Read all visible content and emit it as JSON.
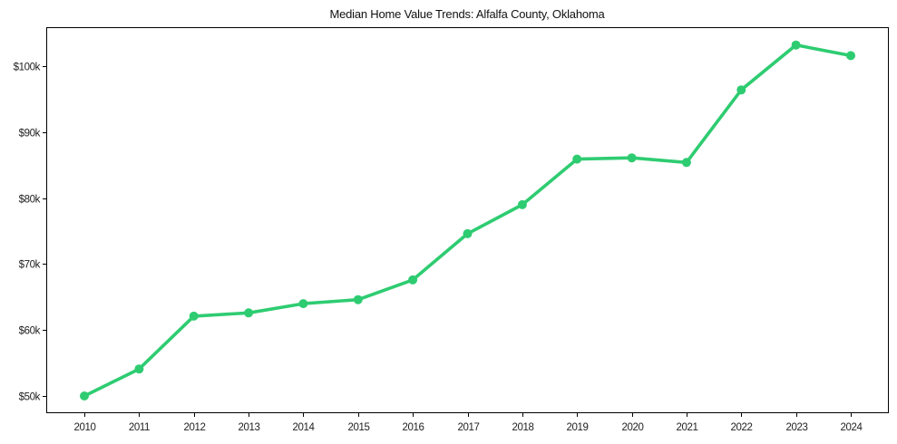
{
  "chart_data": {
    "type": "line",
    "title": "Median Home Value Trends: Alfalfa County, Oklahoma",
    "xlabel": "",
    "ylabel": "",
    "categories": [
      "2010",
      "2011",
      "2012",
      "2013",
      "2014",
      "2015",
      "2016",
      "2017",
      "2018",
      "2019",
      "2020",
      "2021",
      "2022",
      "2023",
      "2024"
    ],
    "series": [
      {
        "name": "Median Home Value",
        "color": "#2ecc71",
        "values": [
          50000,
          54100,
          62100,
          62600,
          64000,
          64600,
          67600,
          74600,
          79000,
          85900,
          86100,
          85400,
          96400,
          103200,
          101600
        ]
      }
    ],
    "yticks": [
      50000,
      60000,
      70000,
      80000,
      90000,
      100000
    ],
    "ytick_labels": [
      "$50k",
      "$60k",
      "$70k",
      "$80k",
      "$90k",
      "$100k"
    ],
    "ylim": [
      47500,
      105600
    ],
    "grid": false,
    "legend": "none"
  }
}
